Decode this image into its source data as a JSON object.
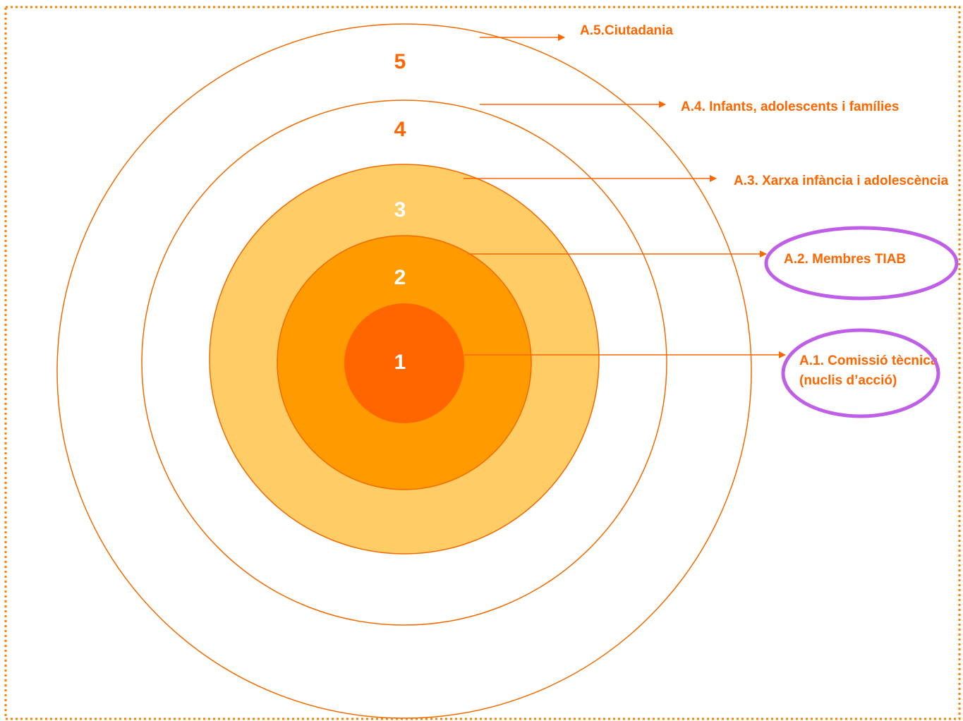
{
  "colors": {
    "frame": "#ff7f00",
    "ring_stroke": "#f26a00",
    "ring_3_fill": "#ffcc66",
    "ring_2_fill": "#ff9a00",
    "ring_1_fill": "#ff6600",
    "number_dark": "#ff6600",
    "number_light": "#ffffff",
    "label": "#ff6600",
    "highlight": "#bf5fe8"
  },
  "rings": [
    {
      "number": "5",
      "filled": false
    },
    {
      "number": "4",
      "filled": false
    },
    {
      "number": "3",
      "filled": true
    },
    {
      "number": "2",
      "filled": true
    },
    {
      "number": "1",
      "filled": true
    }
  ],
  "labels": {
    "a5": "A.5.Ciutadania",
    "a4": "A.4. Infants, adolescents i famílies",
    "a3": "A.3. Xarxa infància i adolescència",
    "a2": "A.2. Membres TIAB",
    "a1_line1": "A.1. Comissió tècnica",
    "a1_line2": "(nuclis d’acció)"
  },
  "highlighted_levels": [
    "A.2",
    "A.1"
  ]
}
